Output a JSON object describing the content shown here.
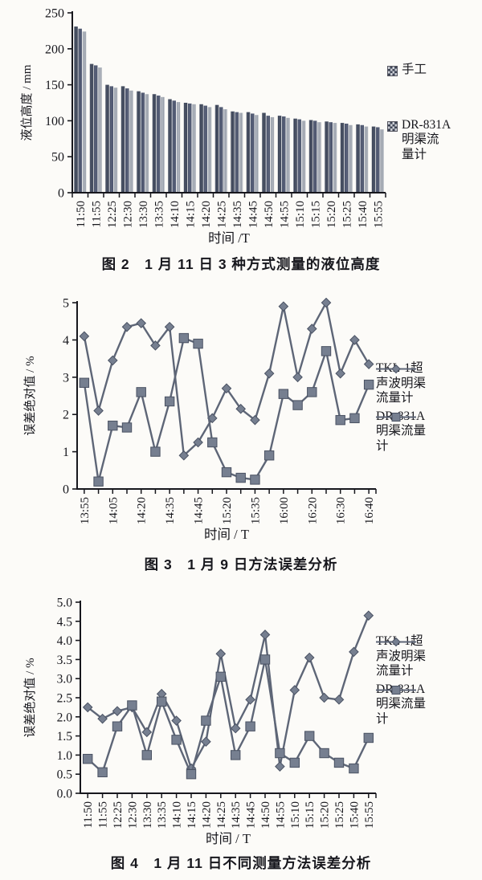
{
  "page": {
    "background": "#fcfbf8",
    "text_color": "#17171d",
    "axis_color": "#17171d"
  },
  "chart_data": [
    {
      "type": "bar",
      "caption": "图 2　1 月 11 日 3 种方式测量的液位高度",
      "xlabel": "时间 /T",
      "ylabel": "液位高度 / mm",
      "ylim": [
        0,
        250
      ],
      "yticks": [
        0,
        50,
        100,
        150,
        200,
        250
      ],
      "ytick_labels": [
        "0",
        "50",
        "100",
        "150",
        "200",
        "250"
      ],
      "grid": false,
      "legend_position": "right",
      "categories": [
        "11:50",
        "11:55",
        "12:25",
        "12:30",
        "13:30",
        "13:35",
        "14:10",
        "14:15",
        "14:20",
        "14:25",
        "14:35",
        "14:45",
        "14:50",
        "14:55",
        "15:10",
        "15:15",
        "15:20",
        "15:25",
        "15:40",
        "15:55"
      ],
      "series": [
        {
          "name": "手工",
          "color": "#3a4254",
          "stripe": "#5a6377",
          "values": [
            231,
            179,
            150,
            148,
            141,
            137,
            130,
            125,
            123,
            122,
            113,
            112,
            111,
            107,
            103,
            101,
            99,
            97,
            95,
            92
          ]
        },
        {
          "name": "",
          "color": "#49516a",
          "stripe": "#656e85",
          "values": [
            228,
            177,
            148,
            145,
            139,
            135,
            128,
            124,
            121,
            119,
            112,
            110,
            107,
            106,
            102,
            100,
            98,
            96,
            94,
            91
          ]
        },
        {
          "name": "DR-831A 明渠流量计",
          "color": "#9aa0ab",
          "stripe": "#bcc1c8",
          "values": [
            224,
            174,
            146,
            142,
            137,
            133,
            126,
            123,
            119,
            116,
            111,
            108,
            105,
            104,
            100,
            98,
            97,
            94,
            92,
            88
          ]
        }
      ],
      "legend": [
        {
          "marker": "checker",
          "lines": [
            "手工"
          ]
        },
        {
          "marker": "checker",
          "lines": [
            "DR-831A",
            "明渠流",
            "量计"
          ]
        }
      ]
    },
    {
      "type": "line",
      "caption": "图 3　1 月 9 日方法误差分析",
      "xlabel": "时间 / T",
      "ylabel": "误差绝对值 / %",
      "ylim": [
        0,
        5
      ],
      "yticks": [
        0,
        1,
        2,
        3,
        4,
        5
      ],
      "ytick_labels": [
        "0",
        "1",
        "2",
        "3",
        "4",
        "5"
      ],
      "grid": false,
      "legend_position": "right",
      "line_color": "#5e6677",
      "marker_fill": "#767f90",
      "marker_stroke": "#4a5263",
      "x_ticklabels": [
        "13:55",
        "",
        "14:05",
        "",
        "14:20",
        "",
        "14:35",
        "",
        "14:45",
        "",
        "15:20",
        "",
        "15:35",
        "",
        "16:00",
        "",
        "16:20",
        "",
        "16:30",
        "",
        "16:40"
      ],
      "series": [
        {
          "name": "TKL-1超声波明渠流量计",
          "marker": "diamond",
          "values": [
            4.1,
            2.1,
            3.45,
            4.35,
            4.45,
            3.85,
            4.35,
            0.9,
            1.25,
            1.9,
            2.7,
            2.15,
            1.85,
            3.1,
            4.9,
            3.0,
            4.3,
            5.0,
            3.1,
            4.0,
            3.35
          ]
        },
        {
          "name": "DR-831A明渠流量计",
          "marker": "square",
          "values": [
            2.85,
            0.2,
            1.7,
            1.65,
            2.6,
            1.0,
            2.35,
            4.05,
            3.9,
            1.25,
            0.45,
            0.3,
            0.25,
            0.9,
            2.55,
            2.25,
            2.6,
            3.7,
            1.85,
            1.9,
            2.8
          ]
        }
      ],
      "legend": [
        {
          "marker": "diamond",
          "lines": [
            "TKL-1超",
            "声波明渠",
            "流量计"
          ]
        },
        {
          "marker": "square",
          "lines": [
            "DR-831A",
            "明渠流量",
            "计"
          ]
        }
      ]
    },
    {
      "type": "line",
      "caption": "图 4　1 月 11 日不同测量方法误差分析",
      "xlabel": "时间 / T",
      "ylabel": "误差绝对值 / %",
      "ylim": [
        0,
        5
      ],
      "yticks": [
        0,
        0.5,
        1,
        1.5,
        2,
        2.5,
        3,
        3.5,
        4,
        4.5,
        5
      ],
      "ytick_labels": [
        "0.0",
        "0.5",
        "1.0",
        "1.5",
        "2.0",
        "2.5",
        "3.0",
        "3.5",
        "4.0",
        "4.5",
        "5.0"
      ],
      "grid": false,
      "legend_position": "right",
      "line_color": "#5e6677",
      "marker_fill": "#767f90",
      "marker_stroke": "#4a5263",
      "x_ticklabels": [
        "11:50",
        "11:55",
        "12:25",
        "12:30",
        "13:30",
        "13:35",
        "14:10",
        "14:15",
        "14:20",
        "14:25",
        "14:35",
        "14:45",
        "14:50",
        "14:55",
        "15:10",
        "15:15",
        "15:20",
        "15:25",
        "15:40",
        "15:55"
      ],
      "series": [
        {
          "name": "TKL-1超声波明渠流量计",
          "marker": "diamond",
          "values": [
            2.25,
            1.95,
            2.15,
            2.25,
            1.6,
            2.6,
            1.9,
            0.65,
            1.35,
            3.65,
            1.7,
            2.45,
            4.15,
            0.7,
            2.7,
            3.55,
            2.5,
            2.45,
            3.7,
            4.65
          ]
        },
        {
          "name": "DR-831A明渠流量计",
          "marker": "square",
          "values": [
            0.9,
            0.55,
            1.75,
            2.3,
            1.0,
            2.4,
            1.4,
            0.5,
            1.9,
            3.05,
            1.0,
            1.75,
            3.5,
            1.05,
            0.8,
            1.5,
            1.05,
            0.8,
            0.65,
            1.45
          ]
        }
      ],
      "legend": [
        {
          "marker": "diamond",
          "lines": [
            "TKL-1超",
            "声波明渠",
            "流量计"
          ]
        },
        {
          "marker": "square",
          "lines": [
            "DR-831A",
            "明渠流量",
            "计"
          ]
        }
      ]
    }
  ]
}
